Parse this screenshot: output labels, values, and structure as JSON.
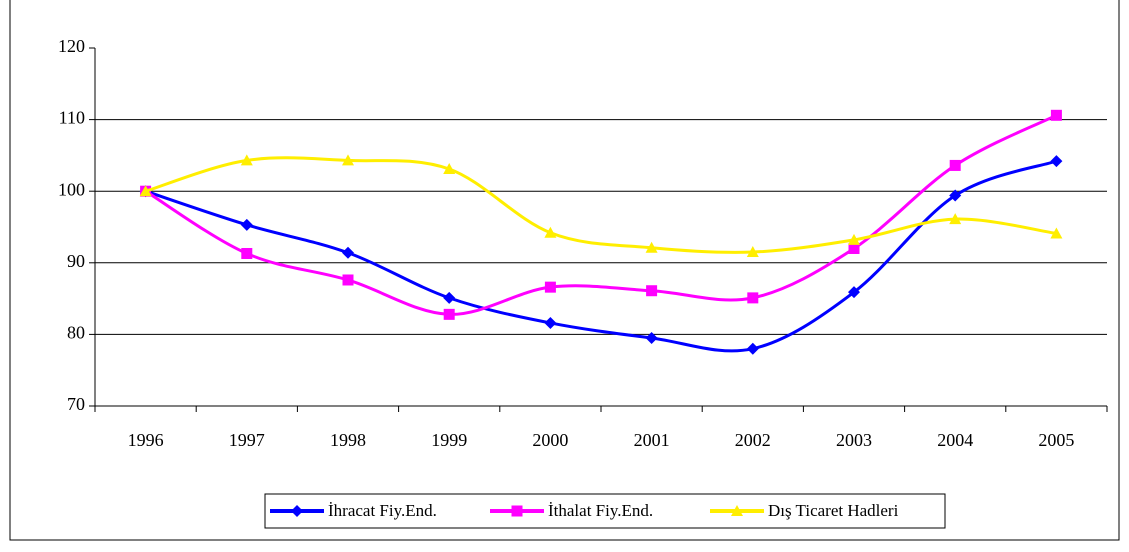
{
  "chart_data": {
    "type": "line",
    "categories": [
      "1996",
      "1997",
      "1998",
      "1999",
      "2000",
      "2001",
      "2002",
      "2003",
      "2004",
      "2005"
    ],
    "series": [
      {
        "name": "İhracat Fiy.End.",
        "color": "#0000ff",
        "marker": "diamond",
        "values": [
          100,
          95.3,
          91.4,
          85.1,
          81.6,
          79.5,
          78,
          85.9,
          99.4,
          104.2
        ]
      },
      {
        "name": "İthalat Fiy.End.",
        "color": "#ff00ff",
        "marker": "square",
        "values": [
          100,
          91.3,
          87.6,
          82.8,
          86.6,
          86.1,
          85.1,
          92,
          103.6,
          110.6
        ]
      },
      {
        "name": "Dış Ticaret Hadleri",
        "color": "#ffee00",
        "marker": "triangle",
        "values": [
          100,
          104.3,
          104.3,
          103.1,
          94.2,
          92.1,
          91.5,
          93.2,
          96.1,
          94.1
        ]
      }
    ],
    "ylim": [
      70,
      120
    ],
    "yticks": [
      70,
      80,
      90,
      100,
      110,
      120
    ],
    "grid": true,
    "smooth": true,
    "legend": "bottom"
  }
}
